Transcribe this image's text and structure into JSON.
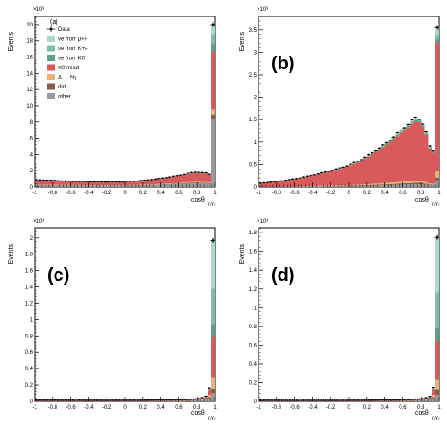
{
  "colors": {
    "mu": "#a9dbc3",
    "kpm": "#7cc2a0",
    "k0": "#5e9e84",
    "pi0": "#d95a5a",
    "delta": "#e8b07a",
    "dirt": "#8a5a48",
    "other": "#9a9a9a",
    "data": "#000000"
  },
  "chart_data": [
    {
      "type": "area",
      "panel_label": "(a)",
      "xlabel": "cosθ",
      "xlabel_sub": "γ₁γ₂",
      "ylabel": "Events",
      "multiplier": "×10³",
      "xlim": [
        -1,
        1
      ],
      "ylim": [
        0,
        21
      ],
      "xticks": [
        "-1",
        "-0.8",
        "-0.6",
        "-0.4",
        "-0.2",
        "0",
        "0.2",
        "0.4",
        "0.6",
        "0.8",
        "1"
      ],
      "yticks": [
        "0",
        "2",
        "4",
        "6",
        "8",
        "10",
        "12",
        "14",
        "16",
        "18",
        "20"
      ],
      "ytick_values": [
        0,
        2,
        4,
        6,
        8,
        10,
        12,
        14,
        16,
        18,
        20
      ],
      "legend": {
        "placement": "top-left",
        "entries": [
          {
            "label": "Data",
            "key": "data"
          },
          {
            "label": "νe from μ+/-",
            "key": "mu"
          },
          {
            "label": "νe from K+/-",
            "key": "kpm"
          },
          {
            "label": "νe from K0",
            "key": "k0"
          },
          {
            "label": "π0 misid",
            "key": "pi0"
          },
          {
            "label": "Δ → Nγ",
            "key": "delta"
          },
          {
            "label": "dirt",
            "key": "dirt"
          },
          {
            "label": "other",
            "key": "other"
          }
        ]
      },
      "body": {
        "x": [
          -1,
          -0.8,
          -0.6,
          -0.4,
          -0.2,
          0,
          0.2,
          0.4,
          0.6,
          0.7,
          0.8,
          0.9,
          0.96
        ],
        "y": [
          0.9,
          0.8,
          0.7,
          0.65,
          0.62,
          0.65,
          0.8,
          1.05,
          1.4,
          1.65,
          1.85,
          1.7,
          1.5
        ]
      },
      "spike": {
        "total": 19.8,
        "data": 20.0,
        "fractions": {
          "other": 0.42,
          "dirt": 0.03,
          "delta": 0.03,
          "pi0": 0.36,
          "k0": 0.05,
          "kpm": 0.06,
          "mu": 0.05
        }
      }
    },
    {
      "type": "area",
      "panel_label": "(b)",
      "xlabel": "cosθ",
      "xlabel_sub": "γ₁γ₂",
      "ylabel": "Events",
      "multiplier": "×10³",
      "xlim": [
        -1,
        1
      ],
      "ylim": [
        0,
        3.8
      ],
      "xticks": [
        "-1",
        "-0.8",
        "-0.6",
        "-0.4",
        "-0.2",
        "0",
        "0.2",
        "0.4",
        "0.6",
        "0.8",
        "1"
      ],
      "yticks": [
        "0",
        "0.5",
        "1",
        "1.5",
        "2",
        "2.5",
        "3",
        "3.5"
      ],
      "ytick_values": [
        0,
        0.5,
        1,
        1.5,
        2,
        2.5,
        3,
        3.5
      ],
      "body": {
        "x": [
          -1,
          -0.8,
          -0.6,
          -0.4,
          -0.2,
          0,
          0.2,
          0.4,
          0.5,
          0.6,
          0.7,
          0.75,
          0.8,
          0.85,
          0.9,
          0.96
        ],
        "y": [
          0.08,
          0.12,
          0.18,
          0.26,
          0.36,
          0.48,
          0.68,
          0.95,
          1.12,
          1.3,
          1.48,
          1.55,
          1.5,
          1.3,
          0.9,
          0.75
        ]
      },
      "spike": {
        "total": 3.5,
        "data": 3.55,
        "fractions": {
          "other": 0.04,
          "dirt": 0.02,
          "delta": 0.04,
          "pi0": 0.82,
          "k0": 0.02,
          "kpm": 0.03,
          "mu": 0.03
        }
      }
    },
    {
      "type": "area",
      "panel_label": "(c)",
      "xlabel": "cosθ",
      "xlabel_sub": "γ₁γ₂",
      "ylabel": "Events",
      "multiplier": "×10³",
      "xlim": [
        -1,
        1
      ],
      "ylim": [
        0,
        2.12
      ],
      "xticks": [
        "-1",
        "-0.8",
        "-0.6",
        "-0.4",
        "-0.2",
        "0",
        "0.2",
        "0.4",
        "0.6",
        "0.8",
        "1"
      ],
      "yticks": [
        "0",
        "0.2",
        "0.4",
        "0.6",
        "0.8",
        "1",
        "1.2",
        "1.4",
        "1.6",
        "1.8",
        "2"
      ],
      "ytick_values": [
        0,
        0.2,
        0.4,
        0.6,
        0.8,
        1,
        1.2,
        1.4,
        1.6,
        1.8,
        2
      ],
      "body": {
        "x": [
          -1,
          -0.6,
          -0.2,
          0.2,
          0.5,
          0.7,
          0.8,
          0.85,
          0.9,
          0.96
        ],
        "y": [
          0.015,
          0.014,
          0.013,
          0.014,
          0.018,
          0.022,
          0.03,
          0.04,
          0.06,
          0.22
        ]
      },
      "spike": {
        "total": 1.97,
        "data": 1.97,
        "fractions": {
          "other": 0.05,
          "dirt": 0.03,
          "delta": 0.07,
          "pi0": 0.25,
          "k0": 0.08,
          "kpm": 0.22,
          "mu": 0.3
        }
      }
    },
    {
      "type": "area",
      "panel_label": "(d)",
      "xlabel": "cosθ",
      "xlabel_sub": "γ₁γ₂",
      "ylabel": "Events",
      "multiplier": "×10³",
      "xlim": [
        -1,
        1
      ],
      "ylim": [
        0,
        1.85
      ],
      "xticks": [
        "-1",
        "-0.8",
        "-0.6",
        "-0.4",
        "-0.2",
        "0",
        "0.2",
        "0.4",
        "0.6",
        "0.8",
        "1"
      ],
      "yticks": [
        "0",
        "0.2",
        "0.4",
        "0.6",
        "0.8",
        "1",
        "1.2",
        "1.4",
        "1.6",
        "1.8"
      ],
      "ytick_values": [
        0,
        0.2,
        0.4,
        0.6,
        0.8,
        1,
        1.2,
        1.4,
        1.6,
        1.8
      ],
      "body": {
        "x": [
          -1,
          -0.6,
          -0.2,
          0.2,
          0.5,
          0.7,
          0.8,
          0.85,
          0.9,
          0.96
        ],
        "y": [
          0.012,
          0.011,
          0.011,
          0.012,
          0.015,
          0.02,
          0.025,
          0.035,
          0.05,
          0.2
        ]
      },
      "spike": {
        "total": 1.74,
        "data": 1.75,
        "fractions": {
          "other": 0.04,
          "dirt": 0.03,
          "delta": 0.06,
          "pi0": 0.24,
          "k0": 0.08,
          "kpm": 0.22,
          "mu": 0.33
        }
      }
    }
  ]
}
